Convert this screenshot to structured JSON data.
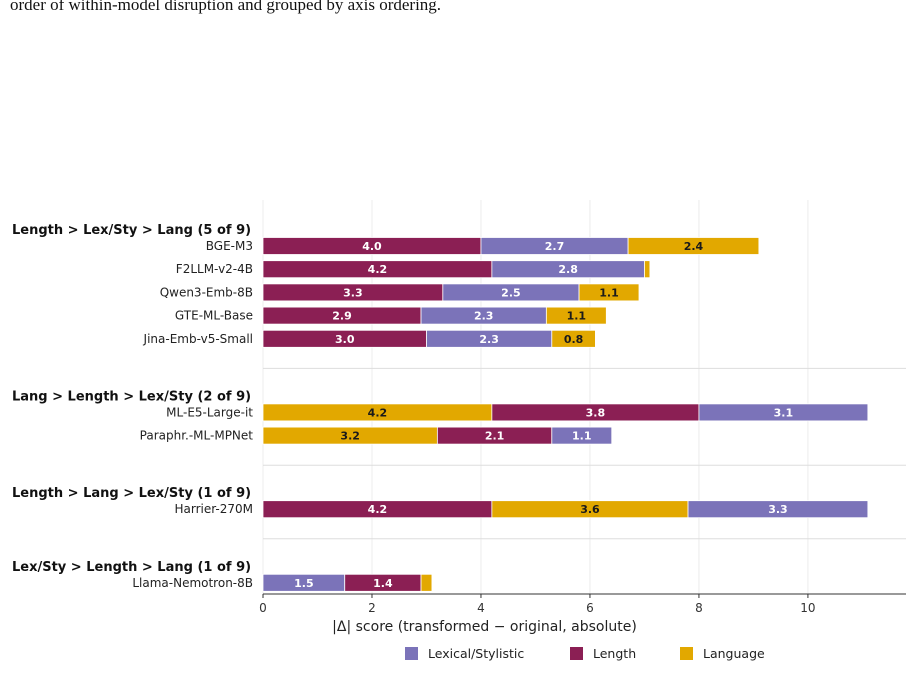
{
  "caption": "order of within-model disruption and grouped by axis ordering.",
  "chart_data": {
    "type": "bar",
    "orientation": "horizontal",
    "stacked": true,
    "xlabel": "|Δ| score (transformed − original, absolute)",
    "xlim": [
      0,
      11.8
    ],
    "xticks": [
      0,
      2,
      4,
      6,
      8,
      10
    ],
    "grid": true,
    "legend_placement": "bottom-center",
    "series_info": [
      {
        "key": "lex",
        "name": "Lexical/Stylistic",
        "color": "#7b73b9",
        "text_color": "#ffffff"
      },
      {
        "key": "len",
        "name": "Length",
        "color": "#8b1f54",
        "text_color": "#ffffff"
      },
      {
        "key": "lang",
        "name": "Language",
        "color": "#e2a800",
        "text_color": "#1a1a1a"
      }
    ],
    "groups": [
      {
        "label": "Length > Lex/Sty > Lang  (5 of 9)",
        "order": [
          "len",
          "lex",
          "lang"
        ],
        "models": [
          {
            "name": "BGE-M3",
            "values": {
              "len": 4.0,
              "lex": 2.7,
              "lang": 2.4
            }
          },
          {
            "name": "F2LLM-v2-4B",
            "values": {
              "len": 4.2,
              "lex": 2.8,
              "lang": 0.1
            }
          },
          {
            "name": "Qwen3-Emb-8B",
            "values": {
              "len": 3.3,
              "lex": 2.5,
              "lang": 1.1
            }
          },
          {
            "name": "GTE-ML-Base",
            "values": {
              "len": 2.9,
              "lex": 2.3,
              "lang": 1.1
            }
          },
          {
            "name": "Jina-Emb-v5-Small",
            "values": {
              "len": 3.0,
              "lex": 2.3,
              "lang": 0.8
            }
          }
        ]
      },
      {
        "label": "Lang > Length > Lex/Sty  (2 of 9)",
        "order": [
          "lang",
          "len",
          "lex"
        ],
        "models": [
          {
            "name": "ML-E5-Large-it",
            "values": {
              "lang": 4.2,
              "len": 3.8,
              "lex": 3.1
            }
          },
          {
            "name": "Paraphr.-ML-MPNet",
            "values": {
              "lang": 3.2,
              "len": 2.1,
              "lex": 1.1
            }
          }
        ]
      },
      {
        "label": "Length > Lang > Lex/Sty  (1 of 9)",
        "order": [
          "len",
          "lang",
          "lex"
        ],
        "models": [
          {
            "name": "Harrier-270M",
            "values": {
              "len": 4.2,
              "lang": 3.6,
              "lex": 3.3
            }
          }
        ]
      },
      {
        "label": "Lex/Sty > Length > Lang  (1 of 9)",
        "order": [
          "lex",
          "len",
          "lang"
        ],
        "models": [
          {
            "name": "Llama-Nemotron-8B",
            "values": {
              "lex": 1.5,
              "len": 1.4,
              "lang": 0.2
            }
          }
        ]
      }
    ]
  }
}
